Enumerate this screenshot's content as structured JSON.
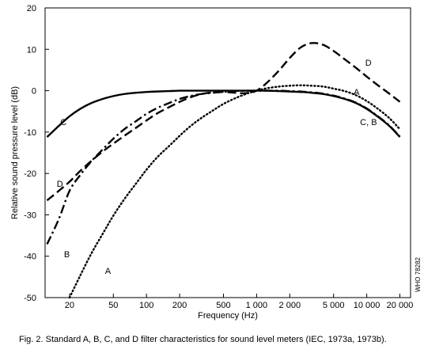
{
  "chart_data": {
    "type": "line",
    "xlabel": "Frequency (Hz)",
    "ylabel": "Relative sound pressure level (dB)",
    "x_scale": "log",
    "xlim": [
      12,
      25000
    ],
    "ylim": [
      -50,
      20
    ],
    "grid": false,
    "x_ticks": [
      20,
      50,
      100,
      200,
      500,
      1000,
      2000,
      5000,
      10000,
      20000
    ],
    "x_tick_labels": [
      "20",
      "50",
      "100",
      "200",
      "500",
      "1 000",
      "2 000",
      "5 000",
      "10 000",
      "20 000"
    ],
    "y_ticks": [
      20,
      10,
      0,
      -10,
      -20,
      -30,
      -40,
      -50
    ],
    "y_tick_labels": [
      "20",
      "10",
      "0",
      "-10",
      "-20",
      "-30",
      "-40",
      "-50"
    ],
    "series": [
      {
        "name": "A",
        "style": "dotted",
        "x": [
          20,
          25,
          31.5,
          40,
          50,
          63,
          80,
          100,
          125,
          160,
          200,
          250,
          315,
          400,
          500,
          630,
          800,
          1000,
          1250,
          1600,
          2000,
          2500,
          3150,
          4000,
          5000,
          6300,
          8000,
          10000,
          12500,
          16000,
          20000
        ],
        "values": [
          -50.5,
          -44.7,
          -39.4,
          -34.6,
          -30.2,
          -26.2,
          -22.5,
          -19.1,
          -16.1,
          -13.4,
          -10.9,
          -8.6,
          -6.6,
          -4.8,
          -3.2,
          -1.9,
          -0.8,
          0.0,
          0.6,
          1.0,
          1.2,
          1.3,
          1.2,
          1.0,
          0.5,
          -0.1,
          -1.1,
          -2.5,
          -4.3,
          -6.6,
          -9.3
        ]
      },
      {
        "name": "B",
        "style": "long-dash-dot",
        "x": [
          12.5,
          16,
          20,
          25,
          31.5,
          40,
          50,
          63,
          80,
          100,
          125,
          160,
          200,
          250,
          315,
          400,
          500,
          630,
          800,
          1000,
          1250,
          1600,
          2000,
          2500,
          3150,
          4000,
          5000,
          6300,
          8000,
          10000,
          12500,
          16000,
          20000
        ],
        "values": [
          -37.1,
          -31.0,
          -24.2,
          -20.4,
          -17.1,
          -14.2,
          -11.6,
          -9.3,
          -7.4,
          -5.6,
          -4.2,
          -3.0,
          -2.0,
          -1.3,
          -0.8,
          -0.5,
          -0.3,
          -0.1,
          0.0,
          0.0,
          0.0,
          0.0,
          -0.1,
          -0.2,
          -0.4,
          -0.7,
          -1.2,
          -1.9,
          -2.9,
          -4.3,
          -6.1,
          -8.4,
          -11.1
        ]
      },
      {
        "name": "C",
        "style": "solid",
        "x": [
          12.5,
          16,
          20,
          25,
          31.5,
          40,
          50,
          63,
          80,
          100,
          125,
          160,
          200,
          250,
          315,
          400,
          500,
          630,
          800,
          1000,
          1250,
          1600,
          2000,
          2500,
          3150,
          4000,
          5000,
          6300,
          8000,
          10000,
          12500,
          16000,
          20000
        ],
        "values": [
          -11.2,
          -8.5,
          -6.2,
          -4.4,
          -3.0,
          -2.0,
          -1.3,
          -0.8,
          -0.5,
          -0.3,
          -0.2,
          -0.1,
          0.0,
          0.0,
          0.0,
          0.0,
          0.0,
          0.0,
          0.0,
          0.0,
          0.0,
          -0.1,
          -0.2,
          -0.3,
          -0.5,
          -0.8,
          -1.3,
          -2.0,
          -3.0,
          -4.4,
          -6.2,
          -8.5,
          -11.2
        ]
      },
      {
        "name": "D",
        "style": "long-dash",
        "x": [
          12.5,
          16,
          20,
          25,
          31.5,
          40,
          50,
          63,
          80,
          100,
          125,
          160,
          200,
          250,
          315,
          400,
          500,
          630,
          800,
          1000,
          1250,
          1600,
          2000,
          2500,
          3150,
          4000,
          5000,
          6300,
          8000,
          10000,
          12500,
          16000,
          20000
        ],
        "values": [
          -26.5,
          -24.2,
          -22.0,
          -19.4,
          -17.0,
          -14.7,
          -12.8,
          -10.9,
          -9.0,
          -7.2,
          -5.5,
          -4.0,
          -2.7,
          -1.6,
          -0.8,
          -0.4,
          -0.3,
          -0.5,
          -0.6,
          0.0,
          2.0,
          4.9,
          7.9,
          10.4,
          11.5,
          11.1,
          9.6,
          7.6,
          5.5,
          3.4,
          1.4,
          -0.7,
          -2.7
        ]
      }
    ],
    "annotations": [
      {
        "text": "C",
        "x": 16.5,
        "y": -7.5
      },
      {
        "text": "D",
        "x": 15.3,
        "y": -22.5
      },
      {
        "text": "B",
        "x": 17.8,
        "y": -39.5
      },
      {
        "text": "A",
        "x": 42,
        "y": -43.5
      },
      {
        "text": "D",
        "x": 9700,
        "y": 6.8
      },
      {
        "text": "A",
        "x": 7600,
        "y": -0.3
      },
      {
        "text": "C, B",
        "x": 8700,
        "y": -7.5
      }
    ],
    "watermark": "WHO 78282",
    "caption": "Fig. 2. Standard A, B, C, and D filter characteristics for sound level meters (IEC, 1973a, 1973b)."
  }
}
